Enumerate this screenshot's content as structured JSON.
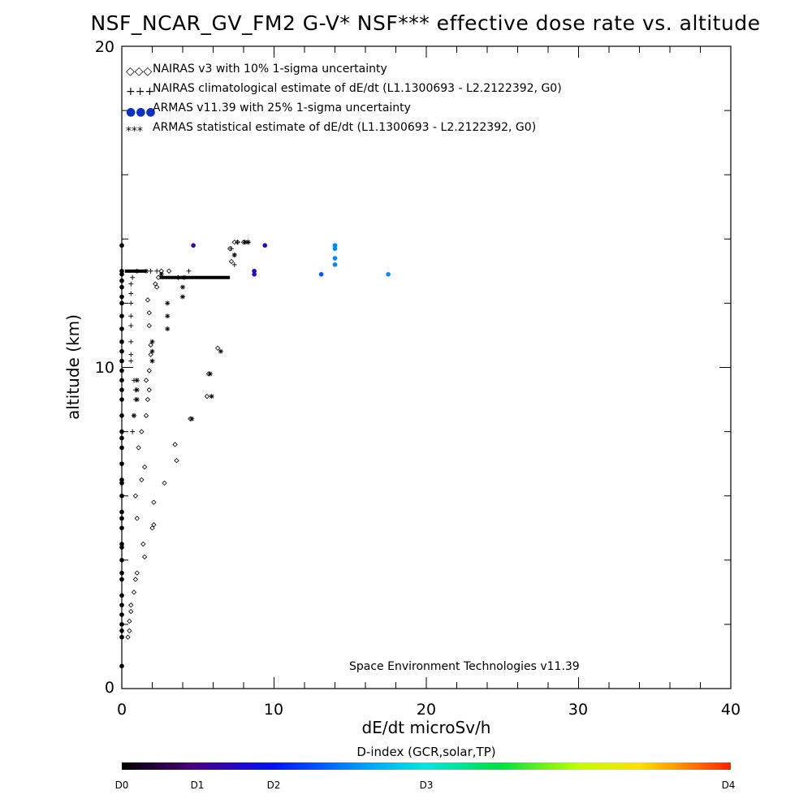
{
  "chart_data": {
    "type": "scatter",
    "title": "NSF_NCAR_GV_FM2 G-V* NSF*** effective dose rate vs. altitude",
    "xlabel": "dE/dt microSv/h",
    "ylabel": "altitude (km)",
    "xlim": [
      0,
      40
    ],
    "ylim": [
      0,
      20
    ],
    "x_ticks": [
      "0",
      "10",
      "20",
      "30",
      "40"
    ],
    "y_ticks": [
      "0",
      "10",
      "20"
    ],
    "grid": false,
    "legend_position": "top-left",
    "legend": [
      {
        "symbol": "◇◇◇",
        "label": "NAIRAS v3 with 10% 1-sigma uncertainty"
      },
      {
        "symbol": "+++",
        "label": "NAIRAS climatological estimate of dE/dt (L1.1300693 - L2.2122392, G0)"
      },
      {
        "symbol": "●●●",
        "label": "ARMAS v11.39 with 25% 1-sigma uncertainty"
      },
      {
        "symbol": "***",
        "label": "ARMAS statistical estimate of dE/dt (L1.1300693 - L2.2122392, G0)"
      }
    ],
    "annotation": "Space Environment Technologies v11.39",
    "colorbar": {
      "title": "D-index (GCR,solar,TP)",
      "labels": [
        "D0",
        "D1",
        "D2",
        "D3",
        "D4"
      ]
    },
    "series": [
      {
        "name": "NAIRAS v3 with 10% 1-sigma uncertainty",
        "marker": "diamond",
        "points": [
          [
            0.4,
            1.6
          ],
          [
            0.5,
            1.8
          ],
          [
            0.5,
            2.1
          ],
          [
            0.6,
            2.4
          ],
          [
            0.6,
            2.6
          ],
          [
            0.8,
            3.0
          ],
          [
            0.9,
            3.4
          ],
          [
            1.0,
            3.6
          ],
          [
            1.5,
            4.1
          ],
          [
            1.4,
            4.5
          ],
          [
            2.0,
            5.0
          ],
          [
            2.1,
            5.1
          ],
          [
            1.0,
            5.3
          ],
          [
            0.9,
            6.0
          ],
          [
            2.1,
            5.8
          ],
          [
            1.3,
            6.5
          ],
          [
            2.8,
            6.4
          ],
          [
            1.5,
            6.9
          ],
          [
            3.6,
            7.1
          ],
          [
            1.1,
            7.5
          ],
          [
            3.5,
            7.6
          ],
          [
            1.3,
            8.0
          ],
          [
            1.6,
            8.5
          ],
          [
            4.5,
            8.4
          ],
          [
            1.7,
            9.0
          ],
          [
            5.6,
            9.1
          ],
          [
            1.8,
            9.3
          ],
          [
            1.6,
            9.6
          ],
          [
            5.7,
            9.8
          ],
          [
            1.8,
            9.9
          ],
          [
            6.3,
            10.6
          ],
          [
            1.9,
            10.4
          ],
          [
            1.9,
            10.7
          ],
          [
            1.8,
            11.3
          ],
          [
            1.8,
            11.7
          ],
          [
            1.7,
            12.1
          ],
          [
            2.2,
            12.6
          ],
          [
            2.3,
            12.5
          ],
          [
            2.4,
            12.8
          ],
          [
            3.7,
            12.8
          ],
          [
            2.6,
            13.0
          ],
          [
            3.1,
            13.0
          ],
          [
            7.1,
            13.7
          ],
          [
            7.2,
            13.3
          ],
          [
            7.4,
            13.9
          ],
          [
            7.6,
            13.9
          ],
          [
            8.0,
            13.9
          ]
        ]
      },
      {
        "name": "NAIRAS climatological estimate of dE/dt (L1.1300693 - L2.2122392, G0)",
        "marker": "plus",
        "points": [
          [
            0.6,
            10.2
          ],
          [
            0.6,
            10.4
          ],
          [
            0.6,
            10.8
          ],
          [
            0.6,
            11.3
          ],
          [
            0.6,
            11.6
          ],
          [
            0.6,
            12.0
          ],
          [
            0.6,
            12.3
          ],
          [
            0.6,
            12.6
          ],
          [
            0.7,
            12.8
          ],
          [
            0.8,
            9.6
          ],
          [
            0.9,
            9.3
          ],
          [
            0.9,
            9.0
          ],
          [
            0.8,
            8.5
          ],
          [
            0.7,
            8.0
          ],
          [
            7.2,
            13.7
          ],
          [
            7.4,
            13.5
          ],
          [
            7.4,
            13.2
          ],
          [
            7.6,
            13.9
          ],
          [
            8.1,
            13.9
          ],
          [
            8.3,
            13.9
          ],
          [
            4.4,
            13.0
          ],
          [
            1.9,
            13.0
          ],
          [
            2.3,
            13.0
          ]
        ]
      },
      {
        "name": "ARMAS v11.39 with 25% 1-sigma uncertainty",
        "marker": "dot",
        "points": [
          [
            0,
            0.7
          ],
          [
            0,
            1.6
          ],
          [
            0,
            1.8
          ],
          [
            0,
            2.0
          ],
          [
            0,
            2.3
          ],
          [
            0,
            2.6
          ],
          [
            0,
            2.9
          ],
          [
            0,
            3.4
          ],
          [
            0,
            3.6
          ],
          [
            0,
            4.0
          ],
          [
            0,
            4.4
          ],
          [
            0,
            4.5
          ],
          [
            0,
            5.0
          ],
          [
            0,
            5.3
          ],
          [
            0,
            5.5
          ],
          [
            0,
            6.0
          ],
          [
            0,
            6.4
          ],
          [
            0,
            6.5
          ],
          [
            0,
            7.0
          ],
          [
            0,
            7.5
          ],
          [
            0,
            7.8
          ],
          [
            0,
            8.0
          ],
          [
            0,
            8.5
          ],
          [
            0,
            9.0
          ],
          [
            0,
            9.3
          ],
          [
            0,
            9.6
          ],
          [
            0,
            9.9
          ],
          [
            0,
            10.2
          ],
          [
            0,
            10.5
          ],
          [
            0,
            10.8
          ],
          [
            0,
            11.2
          ],
          [
            0,
            11.6
          ],
          [
            0,
            12.0
          ],
          [
            0,
            12.2
          ],
          [
            0,
            12.5
          ],
          [
            0,
            12.7
          ],
          [
            0,
            12.9
          ],
          [
            0,
            13.0
          ],
          [
            0,
            13.8
          ],
          [
            4.7,
            13.8
          ],
          [
            9.4,
            13.8
          ],
          [
            8.7,
            13.0
          ],
          [
            8.7,
            12.9
          ],
          [
            13.1,
            12.9
          ],
          [
            14.0,
            13.8
          ],
          [
            14.0,
            13.7
          ],
          [
            14.0,
            13.4
          ],
          [
            14.0,
            13.2
          ],
          [
            17.5,
            12.9
          ]
        ],
        "d_index": [
          0,
          0,
          0,
          0,
          0,
          0,
          0,
          0,
          0,
          0,
          0,
          0,
          0,
          0,
          0,
          0,
          0,
          0,
          0,
          0,
          0,
          0,
          0,
          0,
          0,
          0,
          0,
          0,
          0,
          0,
          0,
          0,
          0,
          0,
          0,
          0,
          0,
          0,
          0,
          0.6,
          0.75,
          0.8,
          0.8,
          1.5,
          1.8,
          1.8,
          1.8,
          1.8,
          1.85
        ]
      },
      {
        "name": "ARMAS statistical estimate of dE/dt (L1.1300693 - L2.2122392, G0)",
        "marker": "asterisk",
        "points": [
          [
            1.0,
            9.3
          ],
          [
            1.0,
            9.0
          ],
          [
            1.0,
            9.6
          ],
          [
            0.8,
            8.5
          ],
          [
            2.0,
            10.2
          ],
          [
            2.0,
            10.5
          ],
          [
            2.0,
            10.8
          ],
          [
            3.0,
            11.2
          ],
          [
            3.0,
            11.6
          ],
          [
            3.0,
            12.0
          ],
          [
            4.0,
            12.2
          ],
          [
            4.0,
            12.5
          ],
          [
            4.1,
            12.8
          ],
          [
            6.5,
            10.5
          ],
          [
            4.6,
            8.4
          ],
          [
            5.9,
            9.1
          ],
          [
            5.8,
            9.8
          ],
          [
            7.4,
            13.5
          ],
          [
            8.1,
            13.9
          ],
          [
            8.3,
            13.9
          ],
          [
            1.0,
            13.0
          ],
          [
            1.6,
            13.0
          ],
          [
            2.6,
            12.9
          ]
        ]
      }
    ],
    "thick_segments": [
      {
        "x_start": 0.2,
        "x_end": 1.6,
        "y": 13.0
      },
      {
        "x_start": 2.5,
        "x_end": 7.1,
        "y": 12.8
      }
    ]
  }
}
